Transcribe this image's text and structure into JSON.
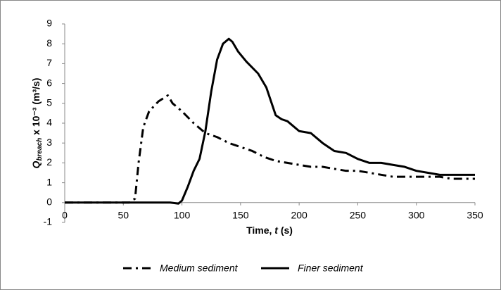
{
  "chart_data": {
    "type": "line",
    "x_label": [
      "Time, ",
      "t",
      " (s)"
    ],
    "y_label": {
      "symbol": "Q",
      "subscript": "breach",
      "rest": " x 10⁻³ (m³/s)"
    },
    "xlim": [
      0,
      350
    ],
    "xticks": [
      0,
      50,
      100,
      150,
      200,
      250,
      300,
      350
    ],
    "ylim": [
      -1,
      9
    ],
    "yticks": [
      -1,
      0,
      1,
      2,
      3,
      4,
      5,
      6,
      7,
      8,
      9
    ],
    "legend": "bottom",
    "series": [
      {
        "name": "Medium sediment",
        "color": "#000000",
        "dash": "dash-dot",
        "x": [
          0,
          55,
          60,
          63,
          67,
          72,
          80,
          88,
          92,
          100,
          110,
          120,
          130,
          140,
          150,
          160,
          170,
          180,
          190,
          200,
          210,
          220,
          230,
          240,
          250,
          260,
          270,
          280,
          290,
          300,
          310,
          320,
          330,
          340,
          350
        ],
        "values": [
          0,
          0,
          0.2,
          2.0,
          3.8,
          4.6,
          5.1,
          5.4,
          5.0,
          4.6,
          4.0,
          3.5,
          3.3,
          3.0,
          2.8,
          2.6,
          2.3,
          2.1,
          2.0,
          1.9,
          1.8,
          1.8,
          1.7,
          1.6,
          1.6,
          1.5,
          1.4,
          1.3,
          1.3,
          1.3,
          1.3,
          1.3,
          1.2,
          1.2,
          1.2
        ]
      },
      {
        "name": "Finer sediment",
        "color": "#000000",
        "dash": "solid",
        "x": [
          0,
          90,
          97,
          100,
          105,
          110,
          115,
          120,
          125,
          130,
          135,
          140,
          143,
          148,
          155,
          165,
          172,
          180,
          185,
          190,
          200,
          210,
          220,
          230,
          240,
          250,
          260,
          270,
          280,
          290,
          300,
          310,
          320,
          330,
          340,
          350
        ],
        "values": [
          0,
          0,
          -0.05,
          0.1,
          0.8,
          1.6,
          2.2,
          3.6,
          5.6,
          7.2,
          8.0,
          8.25,
          8.1,
          7.6,
          7.1,
          6.5,
          5.8,
          4.4,
          4.2,
          4.1,
          3.6,
          3.5,
          3.0,
          2.6,
          2.5,
          2.2,
          2.0,
          2.0,
          1.9,
          1.8,
          1.6,
          1.5,
          1.4,
          1.4,
          1.4,
          1.4
        ]
      }
    ]
  }
}
